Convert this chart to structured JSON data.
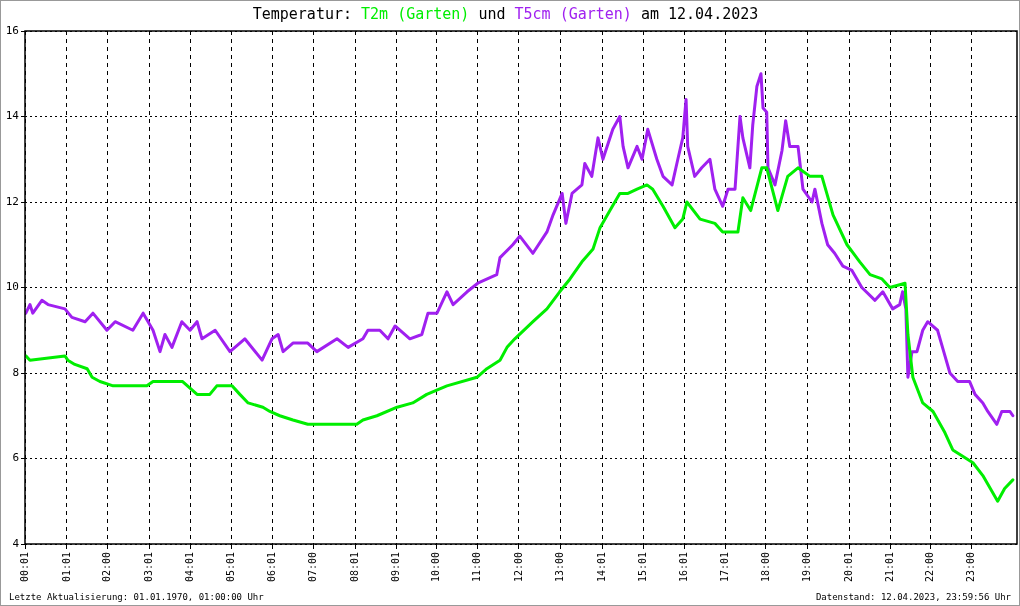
{
  "chart_data": {
    "type": "line",
    "title": "Temperatur:",
    "xlim": [
      0,
      24.1
    ],
    "ylim": [
      4,
      16
    ],
    "xticks": [
      {
        "value": 0.02,
        "label": "00:01"
      },
      {
        "value": 1.02,
        "label": "01:01"
      },
      {
        "value": 2,
        "label": "02:00"
      },
      {
        "value": 3.02,
        "label": "03:01"
      },
      {
        "value": 4.02,
        "label": "04:01"
      },
      {
        "value": 5.02,
        "label": "05:01"
      },
      {
        "value": 6.02,
        "label": "06:01"
      },
      {
        "value": 7,
        "label": "07:00"
      },
      {
        "value": 8.02,
        "label": "08:01"
      },
      {
        "value": 9.02,
        "label": "09:01"
      },
      {
        "value": 10,
        "label": "10:00"
      },
      {
        "value": 11,
        "label": "11:00"
      },
      {
        "value": 12,
        "label": "12:00"
      },
      {
        "value": 13,
        "label": "13:00"
      },
      {
        "value": 14.02,
        "label": "14:01"
      },
      {
        "value": 15.02,
        "label": "15:01"
      },
      {
        "value": 16.02,
        "label": "16:01"
      },
      {
        "value": 17.02,
        "label": "17:01"
      },
      {
        "value": 18,
        "label": "18:00"
      },
      {
        "value": 19,
        "label": "19:00"
      },
      {
        "value": 20.02,
        "label": "20:01"
      },
      {
        "value": 21.02,
        "label": "21:01"
      },
      {
        "value": 22,
        "label": "22:00"
      },
      {
        "value": 23,
        "label": "23:00"
      }
    ],
    "yticks": [
      4,
      6,
      8,
      10,
      12,
      14,
      16
    ],
    "grid": true,
    "line_style": "solid",
    "marker": "none",
    "series": [
      {
        "name": "T2m (Garten)",
        "color": "#00ee00",
        "x": [
          0.02,
          0.12,
          0.97,
          1.04,
          1.21,
          1.51,
          1.63,
          1.82,
          2.14,
          2.96,
          3.11,
          3.83,
          4.18,
          4.49,
          4.66,
          5.03,
          5.22,
          5.42,
          5.78,
          5.95,
          6.19,
          6.51,
          6.87,
          8.06,
          8.21,
          8.55,
          9.04,
          9.42,
          9.76,
          10.25,
          10.98,
          11.22,
          11.54,
          11.71,
          11.9,
          12.34,
          12.68,
          12.99,
          13.24,
          13.53,
          13.8,
          13.97,
          14.21,
          14.45,
          14.65,
          14.87,
          15.11,
          15.25,
          15.5,
          15.79,
          15.98,
          16.08,
          16.4,
          16.76,
          16.95,
          17.32,
          17.44,
          17.63,
          17.9,
          18.02,
          18.29,
          18.53,
          18.78,
          19.07,
          19.36,
          19.63,
          19.97,
          20.28,
          20.53,
          20.82,
          21.01,
          21.38,
          21.45,
          21.57,
          21.81,
          22.06,
          22.35,
          22.54,
          23.03,
          23.27,
          23.63,
          23.8,
          24.0
        ],
        "values": [
          8.4,
          8.3,
          8.4,
          8.3,
          8.2,
          8.1,
          7.9,
          7.8,
          7.7,
          7.7,
          7.8,
          7.8,
          7.5,
          7.5,
          7.7,
          7.7,
          7.5,
          7.3,
          7.2,
          7.1,
          7.0,
          6.9,
          6.8,
          6.8,
          6.9,
          7.0,
          7.2,
          7.3,
          7.5,
          7.7,
          7.9,
          8.1,
          8.3,
          8.6,
          8.8,
          9.2,
          9.5,
          9.9,
          10.2,
          10.6,
          10.9,
          11.4,
          11.8,
          12.2,
          12.2,
          12.3,
          12.4,
          12.3,
          11.9,
          11.4,
          11.6,
          12.0,
          11.6,
          11.5,
          11.3,
          11.3,
          12.1,
          11.8,
          12.8,
          12.8,
          11.8,
          12.6,
          12.8,
          12.6,
          12.6,
          11.7,
          11.0,
          10.6,
          10.3,
          10.2,
          10.0,
          10.1,
          8.9,
          7.9,
          7.3,
          7.1,
          6.6,
          6.2,
          5.9,
          5.6,
          5.0,
          5.3,
          5.5
        ]
      },
      {
        "name": "T5cm (Garten)",
        "color": "#a020f0",
        "x": [
          0.02,
          0.12,
          0.19,
          0.41,
          0.56,
          0.97,
          1.14,
          1.46,
          1.65,
          1.99,
          2.19,
          2.62,
          2.87,
          3.11,
          3.28,
          3.4,
          3.57,
          3.81,
          4.01,
          4.18,
          4.3,
          4.62,
          4.98,
          5.34,
          5.76,
          6.0,
          6.15,
          6.27,
          6.51,
          6.87,
          7.09,
          7.58,
          7.85,
          8.21,
          8.33,
          8.62,
          8.82,
          8.99,
          9.35,
          9.64,
          9.79,
          10.01,
          10.25,
          10.4,
          10.74,
          11.0,
          11.46,
          11.54,
          11.85,
          12.02,
          12.34,
          12.68,
          12.83,
          13.05,
          13.14,
          13.29,
          13.53,
          13.6,
          13.77,
          13.92,
          14.04,
          14.28,
          14.45,
          14.53,
          14.65,
          14.87,
          14.99,
          15.13,
          15.35,
          15.5,
          15.72,
          15.86,
          15.98,
          16.06,
          16.1,
          16.27,
          16.44,
          16.64,
          16.76,
          16.95,
          17.08,
          17.25,
          17.37,
          17.44,
          17.61,
          17.68,
          17.78,
          17.88,
          17.93,
          18.02,
          18.05,
          18.22,
          18.39,
          18.48,
          18.58,
          18.78,
          18.9,
          19.12,
          19.19,
          19.36,
          19.5,
          19.67,
          19.87,
          20.09,
          20.33,
          20.65,
          20.84,
          21.08,
          21.25,
          21.32,
          21.4,
          21.45,
          21.55,
          21.67,
          21.81,
          21.93,
          22.17,
          22.32,
          22.47,
          22.66,
          22.95,
          23.08,
          23.27,
          23.39,
          23.61,
          23.73,
          23.93,
          24.0
        ],
        "values": [
          9.4,
          9.6,
          9.4,
          9.7,
          9.6,
          9.5,
          9.3,
          9.2,
          9.4,
          9.0,
          9.2,
          9.0,
          9.4,
          9.0,
          8.5,
          8.9,
          8.6,
          9.2,
          9.0,
          9.2,
          8.8,
          9.0,
          8.5,
          8.8,
          8.3,
          8.8,
          8.9,
          8.5,
          8.7,
          8.7,
          8.5,
          8.8,
          8.6,
          8.8,
          9.0,
          9.0,
          8.8,
          9.1,
          8.8,
          8.9,
          9.4,
          9.4,
          9.9,
          9.6,
          9.9,
          10.1,
          10.3,
          10.7,
          11.0,
          11.2,
          10.8,
          11.3,
          11.7,
          12.2,
          11.5,
          12.2,
          12.4,
          12.9,
          12.6,
          13.5,
          13.0,
          13.7,
          14.0,
          13.3,
          12.8,
          13.3,
          13.0,
          13.7,
          13.0,
          12.6,
          12.4,
          13.0,
          13.5,
          14.4,
          13.3,
          12.6,
          12.8,
          13.0,
          12.3,
          11.9,
          12.3,
          12.3,
          14.0,
          13.5,
          12.8,
          13.8,
          14.7,
          15.0,
          14.2,
          14.1,
          12.8,
          12.4,
          13.2,
          13.9,
          13.3,
          13.3,
          12.3,
          12.0,
          12.3,
          11.5,
          11.0,
          10.8,
          10.5,
          10.4,
          10.0,
          9.7,
          9.9,
          9.5,
          9.6,
          9.9,
          9.5,
          7.9,
          8.5,
          8.5,
          9.0,
          9.2,
          9.0,
          8.5,
          8.0,
          7.8,
          7.8,
          7.5,
          7.3,
          7.1,
          6.8,
          7.1,
          7.1,
          7.0
        ]
      }
    ],
    "annotations": [
      "und",
      "am 12.04.2023",
      "Letzte Aktualisierung: 01.01.1970, 01:00:00 Uhr",
      "Datenstand: 12.04.2023, 23:59:56 Uhr"
    ]
  }
}
